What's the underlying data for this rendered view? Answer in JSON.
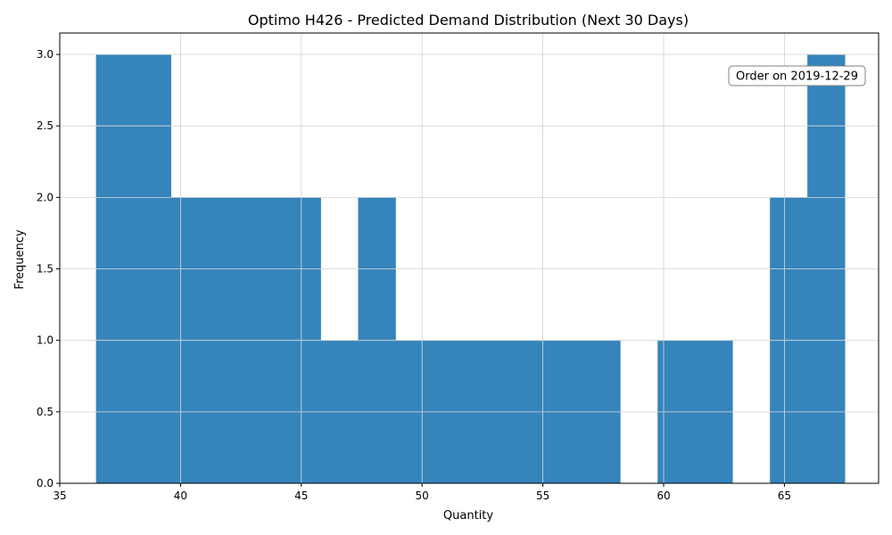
{
  "chart_data": {
    "type": "bar",
    "title": "Optimo H426 - Predicted Demand Distribution (Next 30 Days)",
    "xlabel": "Quantity",
    "ylabel": "Frequency",
    "xlim": [
      35,
      68.9
    ],
    "ylim": [
      0,
      3.15
    ],
    "grid": true,
    "bar_color": "#3584bc",
    "bins": [
      {
        "x0": 36.5,
        "x1": 38.05,
        "count": 3
      },
      {
        "x0": 38.05,
        "x1": 39.6,
        "count": 3
      },
      {
        "x0": 39.6,
        "x1": 41.15,
        "count": 2
      },
      {
        "x0": 41.15,
        "x1": 42.7,
        "count": 2
      },
      {
        "x0": 42.7,
        "x1": 44.25,
        "count": 2
      },
      {
        "x0": 44.25,
        "x1": 45.8,
        "count": 2
      },
      {
        "x0": 45.8,
        "x1": 47.35,
        "count": 1
      },
      {
        "x0": 47.35,
        "x1": 48.9,
        "count": 2
      },
      {
        "x0": 48.9,
        "x1": 50.45,
        "count": 1
      },
      {
        "x0": 50.45,
        "x1": 52.0,
        "count": 1
      },
      {
        "x0": 52.0,
        "x1": 53.55,
        "count": 1
      },
      {
        "x0": 53.55,
        "x1": 55.1,
        "count": 1
      },
      {
        "x0": 55.1,
        "x1": 56.65,
        "count": 1
      },
      {
        "x0": 56.65,
        "x1": 58.2,
        "count": 1
      },
      {
        "x0": 58.2,
        "x1": 59.75,
        "count": 0
      },
      {
        "x0": 59.75,
        "x1": 61.3,
        "count": 1
      },
      {
        "x0": 61.3,
        "x1": 62.85,
        "count": 1
      },
      {
        "x0": 62.85,
        "x1": 64.4,
        "count": 0
      },
      {
        "x0": 64.4,
        "x1": 65.95,
        "count": 2
      },
      {
        "x0": 65.95,
        "x1": 67.5,
        "count": 3
      }
    ],
    "x_ticks": [
      35,
      40,
      45,
      50,
      55,
      60,
      65
    ],
    "x_tick_labels": [
      "35",
      "40",
      "45",
      "50",
      "55",
      "60",
      "65"
    ],
    "y_ticks": [
      0,
      0.5,
      1.0,
      1.5,
      2.0,
      2.5,
      3.0
    ],
    "y_tick_labels": [
      "0.0",
      "0.5",
      "1.0",
      "1.5",
      "2.0",
      "2.5",
      "3.0"
    ],
    "annotation": {
      "text": "Order on 2019-12-29",
      "placement": "top-right"
    }
  }
}
